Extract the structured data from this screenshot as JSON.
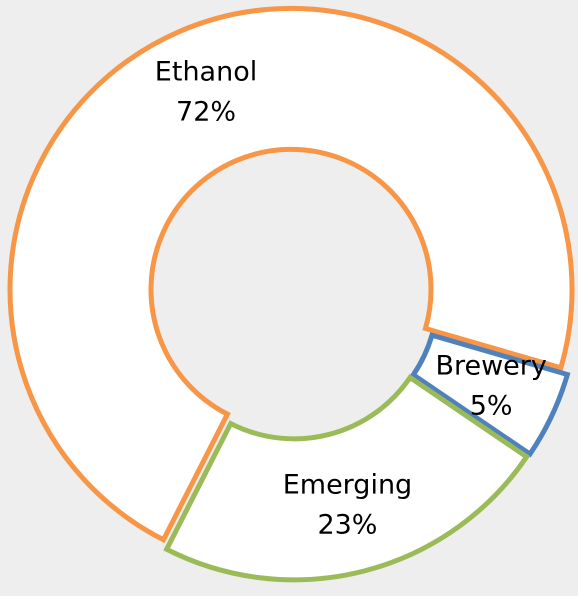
{
  "chart_data": {
    "type": "donut",
    "categories": [
      "Ethanol",
      "Brewery",
      "Emerging"
    ],
    "values": [
      72,
      5,
      23
    ],
    "value_labels": [
      "72%",
      "5%",
      "23%"
    ],
    "colors": [
      "#f79646",
      "#4f81bd",
      "#9bbb59"
    ]
  }
}
